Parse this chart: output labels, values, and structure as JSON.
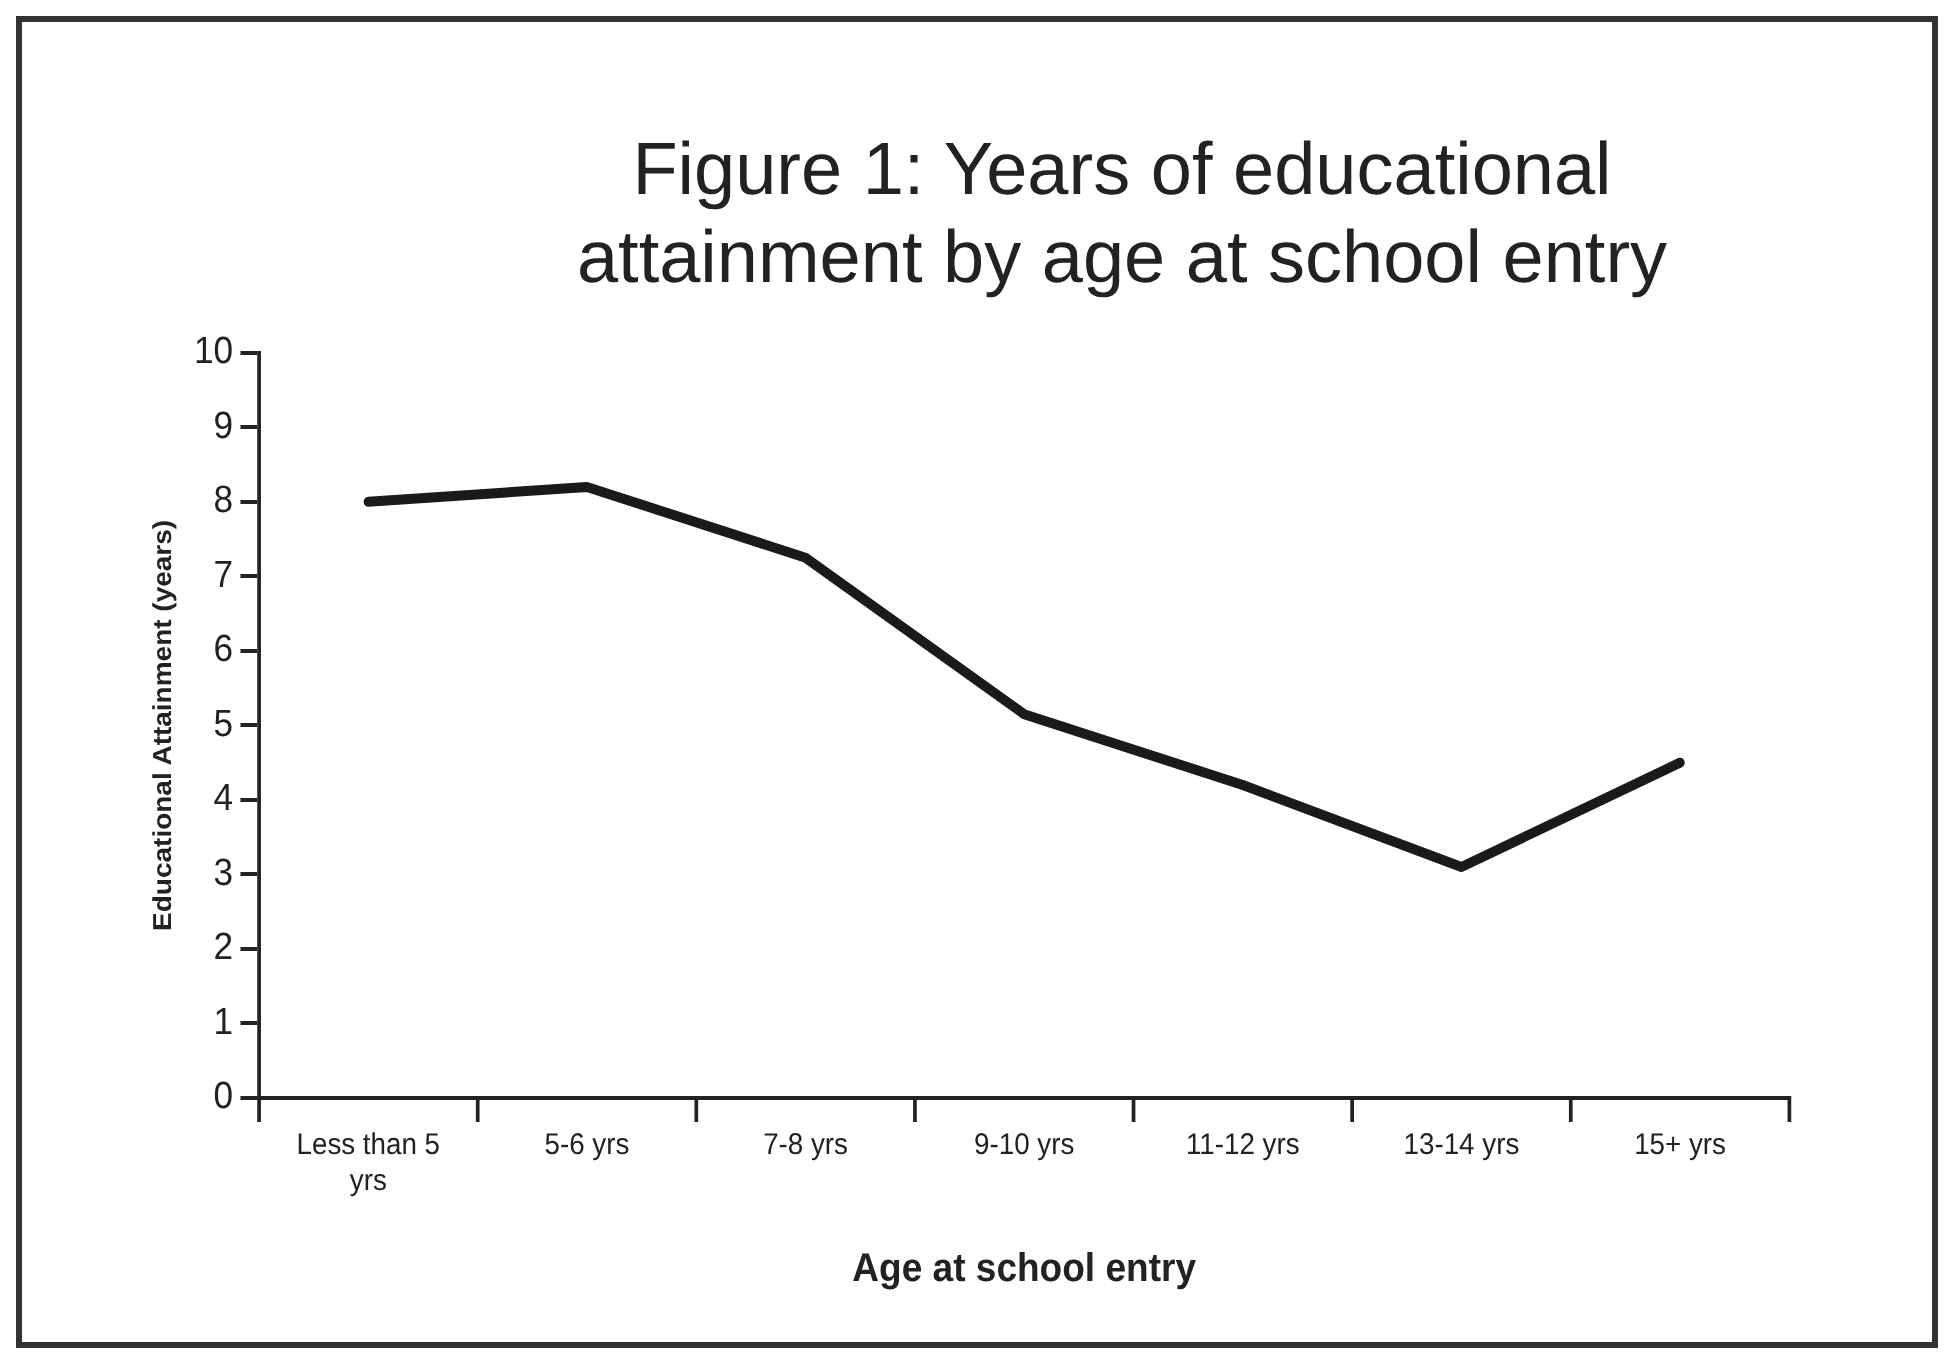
{
  "chart_data": {
    "type": "line",
    "title": "Figure 1:  Years of educational attainment by age at school entry",
    "xlabel": "Age at school entry",
    "ylabel": "Educational Attainment (years)",
    "categories": [
      "Less than 5 yrs",
      "5-6 yrs",
      "7-8 yrs",
      "9-10 yrs",
      "11-12 yrs",
      "13-14 yrs",
      "15+ yrs"
    ],
    "series": [
      {
        "color": "#1a1a1a",
        "values": [
          8.0,
          8.2,
          7.25,
          5.15,
          4.2,
          3.1,
          4.5
        ]
      }
    ],
    "ylim": [
      0,
      10
    ],
    "yticks": [
      0,
      1,
      2,
      3,
      4,
      5,
      6,
      7,
      8,
      9,
      10
    ],
    "grid": false,
    "legend": false,
    "marker": "none",
    "line_style": "solid"
  }
}
